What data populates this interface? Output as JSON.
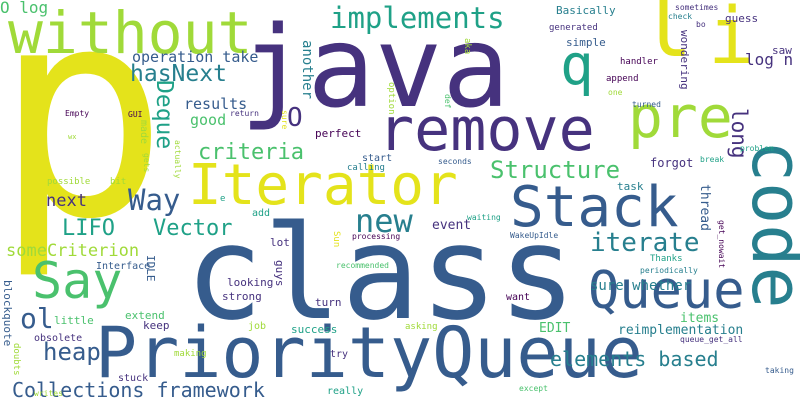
{
  "colors": {
    "background": "#ffffff",
    "yellow": "#e4e31b",
    "lime": "#a0da39",
    "green": "#4ac16d",
    "teal": "#1fa187",
    "cyan": "#277f8e",
    "blue": "#365c8d",
    "indigo": "#46327e",
    "purple": "#440154"
  },
  "words": {
    "p": "p",
    "java": "java",
    "class": "class",
    "priorityqueue": "PriorityQueue",
    "iterator": "Iterator",
    "remove": "remove",
    "stack": "Stack",
    "queue": "Queue",
    "without": "without",
    "l": "l",
    "i": "i",
    "q": "q",
    "pre": "pre",
    "code": "code",
    "say": "Say",
    "new": "new",
    "structure": "Structure",
    "implements": "implements",
    "iterate": "iterate",
    "way": "Way",
    "heap": "heap",
    "ol": "ol",
    "o": "O",
    "criteria": "criteria",
    "hasnext": "hasNext",
    "collections": "Collections framework",
    "lifo": "LIFO",
    "vector": "Vector",
    "elements": "elements based",
    "deque": "Deque",
    "long": "long",
    "somecriterion": "someCriterion",
    "operation": "operation take",
    "next": "next",
    "logn": "log n",
    "results": "results",
    "good": "good",
    "olog": "O log",
    "surewhether": "sure whether",
    "items": "items",
    "reimpl": "reimplementation",
    "edit": "EDIT",
    "event": "event",
    "forgot": "forgot",
    "thread": "thread",
    "task": "task",
    "basically": "Basically",
    "guess": "guess",
    "saw": "saw",
    "simple": "simple",
    "generated": "generated",
    "handler": "handler",
    "append": "append",
    "one": "one",
    "sometimes": "sometimes",
    "check": "check",
    "bo": "bo",
    "turned": "turned",
    "break": "break",
    "problem": "problem",
    "wakeupidle": "WakeUpIdle",
    "waiting": "waiting",
    "seconds": "seconds",
    "calling": "calling",
    "start": "start",
    "perfect": "perfect",
    "processing": "processing",
    "recommended": "recommended",
    "thanks": "Thanks",
    "periodically": "periodically",
    "getnowait": "get_nowait",
    "queuegetall": "queue_get_all",
    "taking": "taking",
    "except": "except",
    "really": "really",
    "try": "try",
    "want": "want",
    "success": "success",
    "turn": "turn",
    "asking": "asking",
    "making": "making",
    "stuck": "stuck",
    "writes": "writes",
    "keep": "keep",
    "extend": "extend",
    "obsolete": "obsolete",
    "little": "little",
    "job": "job",
    "strong": "strong",
    "looking": "looking",
    "lot": "lot",
    "add": "add",
    "e": "e",
    "interface": "Interface",
    "possible": "possible",
    "bit": "bit",
    "gui": "GUI",
    "empty": "Empty",
    "return": "return",
    "wx": "wx",
    "another": "another",
    "sure": "sure",
    "option": "option",
    "aka": "aka",
    "def": "def",
    "wondering": "wondering",
    "made": "made",
    "actually": "actually",
    "gets": "gets",
    "idle": "IDLE",
    "blockquote": "blockquote",
    "doubts": "doubts",
    "guys": "guys",
    "sun": "Sun"
  }
}
